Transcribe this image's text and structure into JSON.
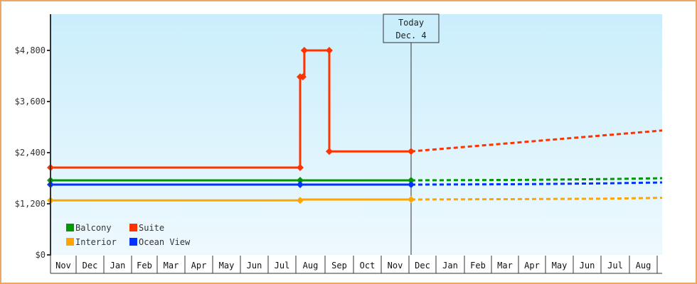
{
  "chart_data": {
    "type": "line",
    "title": "",
    "xlabel": "",
    "ylabel": "",
    "ylim": [
      0,
      5760
    ],
    "y_ticks": [
      {
        "value": 0,
        "label": "$0"
      },
      {
        "value": 1200,
        "label": "$1,200"
      },
      {
        "value": 2400,
        "label": "$2,400"
      },
      {
        "value": 3600,
        "label": "$3,600"
      },
      {
        "value": 4800,
        "label": "$4,800"
      }
    ],
    "months": [
      "Nov",
      "Dec",
      "Jan",
      "Feb",
      "Mar",
      "Apr",
      "May",
      "Jun",
      "Jul",
      "Aug",
      "Sep",
      "Oct",
      "Nov",
      "Dec",
      "Jan",
      "Feb",
      "Mar",
      "Apr",
      "May",
      "Jun",
      "Jul",
      "Aug"
    ],
    "grid": false,
    "legend_position": "lower-left inside",
    "today_marker": {
      "line1": "Today",
      "line2": "Dec. 4",
      "month_index": 13
    },
    "series": [
      {
        "name": "Balcony",
        "color": "#009900",
        "history": [
          {
            "m": 0.0,
            "v": 1750
          },
          {
            "m": 9.0,
            "v": 1750
          },
          {
            "m": 13.0,
            "v": 1750
          }
        ],
        "forecast": [
          {
            "m": 13.0,
            "v": 1750
          },
          {
            "m": 17.0,
            "v": 1760
          },
          {
            "m": 20.0,
            "v": 1780
          },
          {
            "m": 22.0,
            "v": 1800
          }
        ]
      },
      {
        "name": "Suite",
        "color": "#ff3300",
        "history": [
          {
            "m": 0.0,
            "v": 2050
          },
          {
            "m": 9.0,
            "v": 2050
          },
          {
            "m": 9.0,
            "v": 4180
          },
          {
            "m": 9.15,
            "v": 4180
          },
          {
            "m": 9.15,
            "v": 4800
          },
          {
            "m": 10.05,
            "v": 4800
          },
          {
            "m": 10.05,
            "v": 2430
          },
          {
            "m": 13.0,
            "v": 2430
          }
        ],
        "forecast": [
          {
            "m": 13.0,
            "v": 2430
          },
          {
            "m": 22.0,
            "v": 2920
          }
        ]
      },
      {
        "name": "Interior",
        "color": "#ffa500",
        "history": [
          {
            "m": 0.0,
            "v": 1280
          },
          {
            "m": 9.0,
            "v": 1280
          },
          {
            "m": 9.0,
            "v": 1300
          },
          {
            "m": 13.0,
            "v": 1300
          }
        ],
        "forecast": [
          {
            "m": 13.0,
            "v": 1300
          },
          {
            "m": 17.0,
            "v": 1310
          },
          {
            "m": 20.0,
            "v": 1320
          },
          {
            "m": 22.0,
            "v": 1340
          }
        ]
      },
      {
        "name": "Ocean View",
        "color": "#0033ff",
        "history": [
          {
            "m": 0.0,
            "v": 1650
          },
          {
            "m": 9.0,
            "v": 1650
          },
          {
            "m": 13.0,
            "v": 1650
          }
        ],
        "forecast": [
          {
            "m": 13.0,
            "v": 1650
          },
          {
            "m": 17.0,
            "v": 1660
          },
          {
            "m": 20.0,
            "v": 1680
          },
          {
            "m": 22.0,
            "v": 1700
          }
        ]
      }
    ],
    "markers": [
      {
        "series": 0,
        "points": [
          [
            0,
            1750
          ],
          [
            9.0,
            1750
          ],
          [
            13.0,
            1750
          ]
        ]
      },
      {
        "series": 1,
        "points": [
          [
            0,
            2050
          ],
          [
            9.0,
            2050
          ],
          [
            9.0,
            4180
          ],
          [
            9.1,
            4180
          ],
          [
            9.15,
            4800
          ],
          [
            10.05,
            4800
          ],
          [
            10.05,
            2430
          ],
          [
            13.0,
            2430
          ]
        ]
      },
      {
        "series": 2,
        "points": [
          [
            0,
            1280
          ],
          [
            9.0,
            1280
          ],
          [
            13.0,
            1300
          ]
        ]
      },
      {
        "series": 3,
        "points": [
          [
            0,
            1650
          ],
          [
            9.0,
            1650
          ],
          [
            13.0,
            1650
          ]
        ]
      }
    ]
  },
  "legend": {
    "items": [
      {
        "label": "Balcony",
        "color": "#009900"
      },
      {
        "label": "Suite",
        "color": "#ff3300"
      },
      {
        "label": "Interior",
        "color": "#ffa500"
      },
      {
        "label": "Ocean View",
        "color": "#0033ff"
      }
    ]
  },
  "style": {
    "border_color": "#e8a765",
    "plot_bg_top": "#cbeefc",
    "plot_bg_bottom": "#eef9fe",
    "axis_color": "#333333"
  }
}
